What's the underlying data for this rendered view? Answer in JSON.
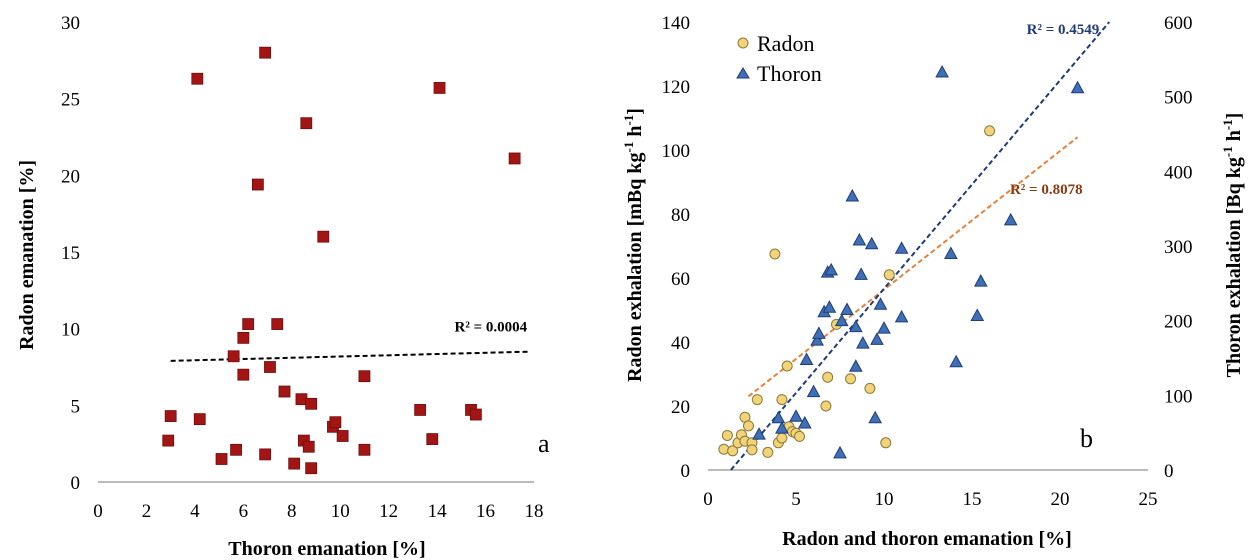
{
  "chart_data": [
    {
      "type": "scatter",
      "panel_label": "a",
      "xlabel": "Thoron emanation [%]",
      "ylabel": "Radon emanation [%]",
      "xlim": [
        0,
        18
      ],
      "ylim": [
        0,
        30
      ],
      "xticks": [
        "0",
        "2",
        "4",
        "6",
        "8",
        "10",
        "12",
        "14",
        "16",
        "18"
      ],
      "yticks": [
        "0",
        "5",
        "10",
        "15",
        "20",
        "25",
        "30"
      ],
      "grid": false,
      "marker": "square",
      "marker_color": "#a31515",
      "series": [
        {
          "points": [
            [
              2.9,
              2.7
            ],
            [
              3.0,
              4.3
            ],
            [
              4.1,
              26.3
            ],
            [
              4.2,
              4.1
            ],
            [
              5.1,
              1.5
            ],
            [
              5.6,
              8.2
            ],
            [
              5.7,
              2.1
            ],
            [
              6.0,
              9.4
            ],
            [
              6.0,
              7.0
            ],
            [
              6.2,
              10.3
            ],
            [
              6.6,
              19.4
            ],
            [
              6.9,
              28.0
            ],
            [
              6.9,
              1.8
            ],
            [
              7.1,
              7.5
            ],
            [
              7.4,
              10.3
            ],
            [
              7.7,
              5.9
            ],
            [
              8.1,
              1.2
            ],
            [
              8.4,
              5.4
            ],
            [
              8.5,
              2.7
            ],
            [
              8.6,
              23.4
            ],
            [
              8.7,
              2.3
            ],
            [
              8.8,
              5.1
            ],
            [
              8.8,
              0.9
            ],
            [
              9.3,
              16.0
            ],
            [
              9.7,
              3.6
            ],
            [
              9.8,
              3.9
            ],
            [
              10.1,
              3.0
            ],
            [
              11.0,
              2.1
            ],
            [
              11.0,
              6.9
            ],
            [
              13.3,
              4.7
            ],
            [
              13.8,
              2.8
            ],
            [
              14.1,
              25.7
            ],
            [
              15.4,
              4.7
            ],
            [
              15.6,
              4.4
            ],
            [
              17.2,
              21.1
            ]
          ]
        }
      ],
      "trendline": {
        "style": "dashed",
        "color": "#000000",
        "x": [
          3.0,
          17.8
        ],
        "y": [
          7.9,
          8.5
        ],
        "label": "R² = 0.0004"
      }
    },
    {
      "type": "scatter",
      "panel_label": "b",
      "xlabel": "Radon and thoron emanation [%]",
      "ylabel": "Radon exhalation [mBq kg⁻¹ h⁻¹]",
      "ylabel_parts": [
        "Radon exhalation  [mBq kg",
        "-1",
        " h",
        "-1",
        "]"
      ],
      "y2label": "Thoron exhalation [Bq kg⁻¹ h⁻¹]",
      "y2label_parts": [
        "Thoron exhalation  [Bq kg",
        "-1",
        " h",
        "-1",
        "]"
      ],
      "xlim": [
        0,
        25
      ],
      "ylim": [
        0,
        140
      ],
      "y2lim": [
        0,
        600
      ],
      "xticks": [
        "0",
        "5",
        "10",
        "15",
        "20",
        "25"
      ],
      "yticks": [
        "0",
        "20",
        "40",
        "60",
        "80",
        "100",
        "120",
        "140"
      ],
      "y2ticks": [
        "0",
        "100",
        "200",
        "300",
        "400",
        "500",
        "600"
      ],
      "grid": false,
      "legend_position": "top-left",
      "series": [
        {
          "name": "Radon",
          "marker": "circle",
          "color": "#f2d37a",
          "axis": "left",
          "points": [
            [
              0.9,
              6.5
            ],
            [
              1.1,
              10.8
            ],
            [
              1.4,
              6.0
            ],
            [
              1.7,
              8.5
            ],
            [
              1.9,
              11.0
            ],
            [
              2.1,
              16.5
            ],
            [
              2.1,
              9.0
            ],
            [
              2.3,
              13.8
            ],
            [
              2.5,
              8.5
            ],
            [
              2.5,
              6.3
            ],
            [
              2.8,
              22.0
            ],
            [
              3.4,
              5.5
            ],
            [
              3.8,
              67.5
            ],
            [
              4.0,
              8.5
            ],
            [
              4.2,
              10.0
            ],
            [
              4.2,
              22.0
            ],
            [
              4.5,
              32.5
            ],
            [
              4.6,
              13.5
            ],
            [
              4.8,
              12.0
            ],
            [
              5.0,
              11.5
            ],
            [
              5.2,
              10.5
            ],
            [
              6.7,
              20.0
            ],
            [
              6.8,
              29.0
            ],
            [
              7.3,
              45.5
            ],
            [
              8.1,
              28.5
            ],
            [
              9.2,
              25.5
            ],
            [
              10.1,
              8.5
            ],
            [
              10.3,
              61.0
            ],
            [
              16.0,
              106.0
            ]
          ],
          "trendline": {
            "style": "dashed",
            "color": "#e8823a",
            "x": [
              2.3,
              21.0
            ],
            "y": [
              23.0,
              104.0
            ],
            "label": "R² = 0.8078"
          }
        },
        {
          "name": "Thoron",
          "marker": "triangle",
          "color": "#3f6fb5",
          "axis": "right",
          "points": [
            [
              2.9,
              48
            ],
            [
              4.0,
              70
            ],
            [
              4.2,
              56
            ],
            [
              5.0,
              72
            ],
            [
              5.5,
              63
            ],
            [
              5.6,
              148
            ],
            [
              6.0,
              105
            ],
            [
              6.2,
              174
            ],
            [
              6.3,
              183
            ],
            [
              6.6,
              212
            ],
            [
              6.8,
              265
            ],
            [
              6.9,
              218
            ],
            [
              7.0,
              268
            ],
            [
              7.5,
              23
            ],
            [
              7.6,
              200
            ],
            [
              7.9,
              215
            ],
            [
              8.2,
              367
            ],
            [
              8.4,
              139
            ],
            [
              8.4,
              192
            ],
            [
              8.6,
              308
            ],
            [
              8.7,
              262
            ],
            [
              8.8,
              170
            ],
            [
              9.3,
              303
            ],
            [
              9.5,
              70
            ],
            [
              9.6,
              175
            ],
            [
              9.8,
              222
            ],
            [
              10.0,
              190
            ],
            [
              11.0,
              297
            ],
            [
              11.0,
              205
            ],
            [
              13.3,
              533
            ],
            [
              13.8,
              290
            ],
            [
              14.1,
              145
            ],
            [
              15.3,
              207
            ],
            [
              15.5,
              253
            ],
            [
              17.2,
              335
            ],
            [
              21.0,
              512
            ]
          ],
          "trendline": {
            "style": "dashed",
            "color": "#1f3c78",
            "x": [
              1.3,
              22.8
            ],
            "y": [
              0,
              600
            ],
            "label": "R² = 0.4549"
          }
        }
      ]
    }
  ]
}
